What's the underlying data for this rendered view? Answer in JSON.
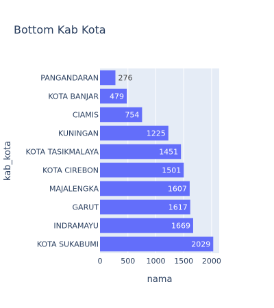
{
  "chart_data": {
    "type": "bar",
    "orientation": "horizontal",
    "title": "Bottom Kab Kota",
    "xlabel": "nama",
    "ylabel": "kab_kota",
    "categories": [
      "PANGANDARAN",
      "KOTA BANJAR",
      "CIAMIS",
      "KUNINGAN",
      "KOTA TASIKMALAYA",
      "KOTA CIREBON",
      "MAJALENGKA",
      "GARUT",
      "INDRAMAYU",
      "KOTA SUKABUMI"
    ],
    "values": [
      276,
      479,
      754,
      1225,
      1451,
      1501,
      1607,
      1617,
      1669,
      2029
    ],
    "x_ticks": [
      0,
      500,
      1000,
      1500,
      2000
    ],
    "xlim": [
      0,
      2136
    ],
    "grid": true,
    "bar_color": "#636efa",
    "plot_bg": "#e5ecf6"
  }
}
